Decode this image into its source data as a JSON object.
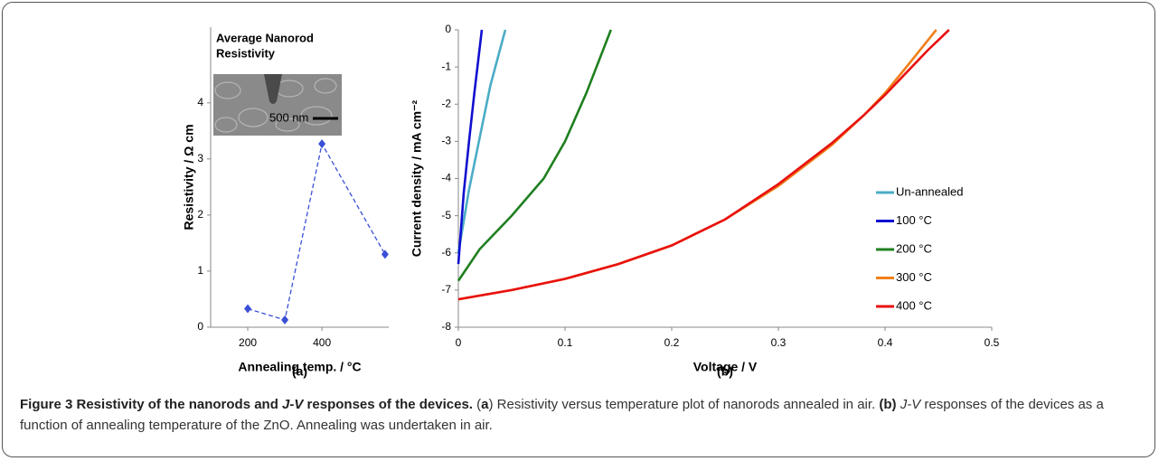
{
  "chart_data": [
    {
      "type": "line",
      "title": [
        "Average Nanorod",
        "Resistivity"
      ],
      "inset_label": "500 nm",
      "x": [
        200,
        300,
        400,
        570
      ],
      "values": [
        0.33,
        0.13,
        3.27,
        1.3
      ],
      "color": "#3a4fd6",
      "linestyle": "dashed",
      "marker": "diamond",
      "xlim": [
        100,
        580
      ],
      "xticks": [
        200,
        400
      ],
      "ylim": [
        0,
        5.35
      ],
      "yticks": [
        0,
        1,
        2,
        3,
        4
      ],
      "xlabel": "Annealing temp. / °C",
      "ylabel": "Resistivity / Ω cm",
      "panel": "(a)"
    },
    {
      "type": "line",
      "legend": "right",
      "series": [
        {
          "name": "Un-annealed",
          "color": "#4bacc6",
          "x": [
            0,
            0.01,
            0.02,
            0.03,
            0.044
          ],
          "values": [
            -6.0,
            -4.3,
            -2.9,
            -1.5,
            0
          ]
        },
        {
          "name": "100 °C",
          "color": "#1010d0",
          "x": [
            0,
            0.005,
            0.01,
            0.015,
            0.022
          ],
          "values": [
            -6.3,
            -4.4,
            -3.0,
            -1.7,
            0
          ]
        },
        {
          "name": "200 °C",
          "color": "#1f7f1f",
          "x": [
            0,
            0.02,
            0.05,
            0.08,
            0.1,
            0.12,
            0.143
          ],
          "values": [
            -6.75,
            -5.9,
            -5.0,
            -4.0,
            -3.0,
            -1.7,
            0
          ]
        },
        {
          "name": "300 °C",
          "color": "#f07f1a",
          "x": [
            0,
            0.05,
            0.1,
            0.15,
            0.2,
            0.25,
            0.3,
            0.35,
            0.38,
            0.4,
            0.42,
            0.448
          ],
          "values": [
            -7.25,
            -7.0,
            -6.7,
            -6.3,
            -5.8,
            -5.1,
            -4.2,
            -3.1,
            -2.3,
            -1.7,
            -1.0,
            0
          ]
        },
        {
          "name": "400 °C",
          "color": "#e8110f",
          "x": [
            0,
            0.05,
            0.1,
            0.15,
            0.2,
            0.25,
            0.3,
            0.35,
            0.38,
            0.4,
            0.42,
            0.44,
            0.46
          ],
          "values": [
            -7.25,
            -7.0,
            -6.7,
            -6.3,
            -5.8,
            -5.1,
            -4.15,
            -3.05,
            -2.3,
            -1.75,
            -1.15,
            -0.55,
            0
          ]
        }
      ],
      "xlim": [
        0,
        0.5
      ],
      "xticks": [
        0,
        0.1,
        0.2,
        0.3,
        0.4,
        0.5
      ],
      "ylim": [
        -8,
        0
      ],
      "yticks": [
        -8,
        -7,
        -6,
        -5,
        -4,
        -3,
        -2,
        -1,
        0
      ],
      "xlabel": "Voltage / V",
      "ylabel": "Current density / mA cm⁻²",
      "panel": "(b)"
    }
  ],
  "caption": {
    "title": [
      "Figure 3 Resistivity of the nanorods and ",
      "J-V",
      " responses of the devices."
    ],
    "text": [
      "(",
      "a",
      ") Resistivity versus temperature plot of nanorods annealed in air. ",
      "(b)",
      "J-V",
      " responses of the devices as a function of annealing temperature of the ZnO. Annealing was undertaken in air."
    ]
  }
}
